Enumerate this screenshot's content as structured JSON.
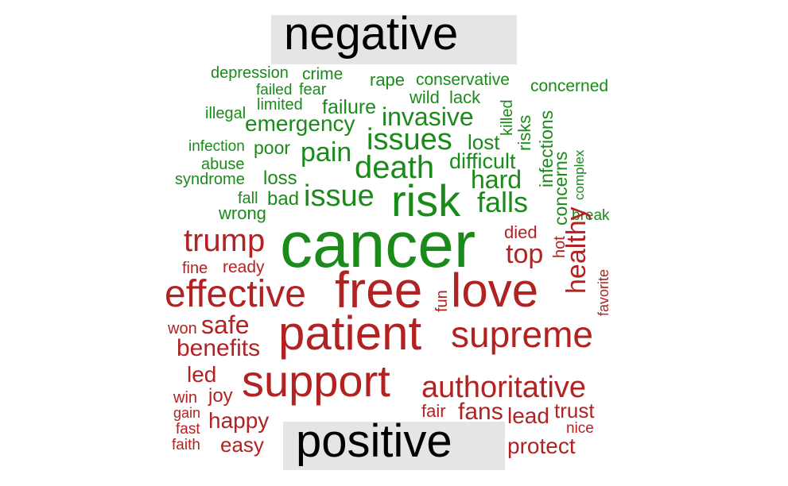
{
  "chart_data": {
    "type": "wordcloud",
    "title": "",
    "colors": {
      "negative": "#1a8a1a",
      "positive": "#b22222",
      "label_box": "#e5e5e5"
    },
    "groups": [
      {
        "name": "negative",
        "label": "negative",
        "color": "#1a8a1a",
        "words": [
          {
            "text": "cancer",
            "weight": 100
          },
          {
            "text": "risk",
            "weight": 72
          },
          {
            "text": "death",
            "weight": 50
          },
          {
            "text": "issues",
            "weight": 48
          },
          {
            "text": "issue",
            "weight": 48
          },
          {
            "text": "falls",
            "weight": 44
          },
          {
            "text": "pain",
            "weight": 42
          },
          {
            "text": "hard",
            "weight": 38
          },
          {
            "text": "invasive",
            "weight": 38
          },
          {
            "text": "emergency",
            "weight": 35
          },
          {
            "text": "difficult",
            "weight": 32
          },
          {
            "text": "lost",
            "weight": 28
          },
          {
            "text": "failure",
            "weight": 28
          },
          {
            "text": "infections",
            "weight": 28
          },
          {
            "text": "concerns",
            "weight": 28
          },
          {
            "text": "risks",
            "weight": 26
          },
          {
            "text": "loss",
            "weight": 26
          },
          {
            "text": "bad",
            "weight": 26
          },
          {
            "text": "poor",
            "weight": 24
          },
          {
            "text": "wrong",
            "weight": 24
          },
          {
            "text": "wild",
            "weight": 24
          },
          {
            "text": "lack",
            "weight": 24
          },
          {
            "text": "rape",
            "weight": 24
          },
          {
            "text": "conservative",
            "weight": 24
          },
          {
            "text": "killed",
            "weight": 22
          },
          {
            "text": "concerned",
            "weight": 22
          },
          {
            "text": "crime",
            "weight": 22
          },
          {
            "text": "depression",
            "weight": 20
          },
          {
            "text": "failed",
            "weight": 20
          },
          {
            "text": "fear",
            "weight": 20
          },
          {
            "text": "limited",
            "weight": 20
          },
          {
            "text": "illegal",
            "weight": 20
          },
          {
            "text": "infection",
            "weight": 20
          },
          {
            "text": "abuse",
            "weight": 20
          },
          {
            "text": "syndrome",
            "weight": 20
          },
          {
            "text": "fall",
            "weight": 20
          },
          {
            "text": "complex",
            "weight": 18
          },
          {
            "text": "break",
            "weight": 18
          }
        ]
      },
      {
        "name": "positive",
        "label": "positive",
        "color": "#b22222",
        "words": [
          {
            "text": "free",
            "weight": 78
          },
          {
            "text": "patient",
            "weight": 74
          },
          {
            "text": "support",
            "weight": 68
          },
          {
            "text": "love",
            "weight": 66
          },
          {
            "text": "effective",
            "weight": 56
          },
          {
            "text": "supreme",
            "weight": 52
          },
          {
            "text": "trump",
            "weight": 46
          },
          {
            "text": "authoritative",
            "weight": 42
          },
          {
            "text": "healthy",
            "weight": 40
          },
          {
            "text": "top",
            "weight": 38
          },
          {
            "text": "safe",
            "weight": 36
          },
          {
            "text": "benefits",
            "weight": 34
          },
          {
            "text": "fans",
            "weight": 32
          },
          {
            "text": "happy",
            "weight": 30
          },
          {
            "text": "led",
            "weight": 30
          },
          {
            "text": "lead",
            "weight": 30
          },
          {
            "text": "trust",
            "weight": 30
          },
          {
            "text": "protect",
            "weight": 30
          },
          {
            "text": "easy",
            "weight": 28
          },
          {
            "text": "joy",
            "weight": 26
          },
          {
            "text": "fair",
            "weight": 24
          },
          {
            "text": "died",
            "weight": 24
          },
          {
            "text": "hot",
            "weight": 22
          },
          {
            "text": "fun",
            "weight": 22
          },
          {
            "text": "ready",
            "weight": 22
          },
          {
            "text": "fine",
            "weight": 22
          },
          {
            "text": "won",
            "weight": 22
          },
          {
            "text": "favorite",
            "weight": 20
          },
          {
            "text": "win",
            "weight": 20
          },
          {
            "text": "gain",
            "weight": 20
          },
          {
            "text": "fast",
            "weight": 20
          },
          {
            "text": "faith",
            "weight": 20
          },
          {
            "text": "nice",
            "weight": 20
          }
        ]
      }
    ]
  }
}
